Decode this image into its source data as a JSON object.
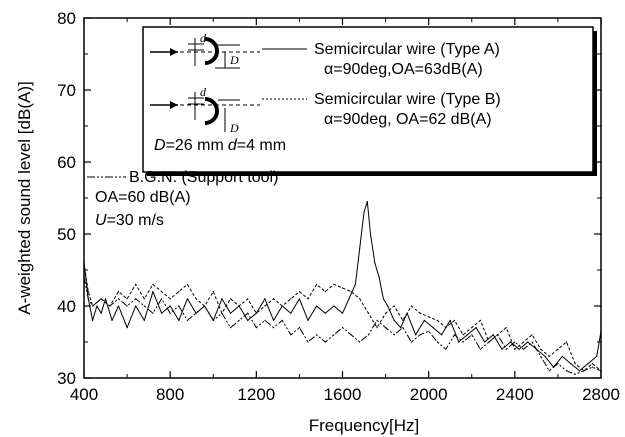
{
  "chart_data": {
    "type": "line",
    "title": "",
    "xlabel": "Frequency[Hz]",
    "ylabel": "A-weighted sound level [dB(A)]",
    "xlim": [
      400,
      2800
    ],
    "ylim": [
      30,
      80
    ],
    "xticks": [
      400,
      800,
      1200,
      1600,
      2000,
      2400,
      2800
    ],
    "yticks": [
      30,
      40,
      50,
      60,
      70,
      80
    ],
    "grid": false,
    "legend_position": "top-right",
    "legend": {
      "typeA_name": "Semicircular wire (Type A)",
      "typeA_params": "α=90deg,OA=63dB(A)",
      "typeB_name": "Semicircular wire (Type B)",
      "typeB_params": "α=90deg, OA=62 dB(A)",
      "dims_D": "D",
      "dims_D_value": "=26 mm",
      "dims_d": "d",
      "dims_d_value": "=4 mm",
      "bgn_name": "B.G.N. (Support tool)",
      "bgn_oa": "OA=60 dB(A)",
      "speed_U": "U",
      "speed_value": "=30 m/s",
      "sketch_d": "d",
      "sketch_D": "D"
    },
    "series": [
      {
        "name": "Semicircular wire (Type A)",
        "style": "solid",
        "x": [
          400,
          420,
          440,
          460,
          480,
          500,
          530,
          560,
          600,
          640,
          680,
          720,
          760,
          800,
          840,
          880,
          920,
          960,
          1000,
          1040,
          1080,
          1120,
          1160,
          1200,
          1240,
          1280,
          1320,
          1360,
          1400,
          1440,
          1480,
          1520,
          1560,
          1600,
          1630,
          1660,
          1680,
          1700,
          1715,
          1730,
          1750,
          1770,
          1790,
          1810,
          1840,
          1870,
          1900,
          1940,
          1980,
          2020,
          2060,
          2100,
          2140,
          2180,
          2220,
          2260,
          2300,
          2340,
          2380,
          2420,
          2460,
          2500,
          2540,
          2580,
          2620,
          2660,
          2700,
          2740,
          2780,
          2800
        ],
        "y": [
          46,
          41,
          38,
          40,
          39,
          41,
          38,
          40,
          37,
          40,
          38,
          42,
          39,
          40,
          38,
          41,
          39,
          40,
          38,
          41,
          39,
          40,
          38,
          39,
          41,
          38,
          40,
          39,
          41,
          38,
          40,
          39,
          40,
          39,
          41,
          43,
          48,
          53,
          54.5,
          50,
          46,
          44,
          41,
          40,
          38,
          37,
          39,
          36,
          38,
          37,
          36,
          38,
          35,
          36,
          37,
          35,
          36,
          34,
          35,
          34,
          35,
          34,
          33,
          31.5,
          33,
          32,
          31,
          32,
          33,
          36.5
        ]
      },
      {
        "name": "Semicircular wire (Type B)",
        "style": "dashed",
        "x": [
          400,
          420,
          440,
          480,
          520,
          560,
          600,
          640,
          680,
          720,
          760,
          800,
          840,
          880,
          920,
          960,
          1000,
          1040,
          1080,
          1120,
          1160,
          1200,
          1240,
          1280,
          1320,
          1360,
          1400,
          1440,
          1480,
          1520,
          1560,
          1600,
          1640,
          1680,
          1720,
          1760,
          1800,
          1840,
          1880,
          1920,
          1960,
          2000,
          2040,
          2080,
          2120,
          2160,
          2200,
          2240,
          2280,
          2320,
          2360,
          2400,
          2440,
          2480,
          2520,
          2560,
          2600,
          2640,
          2680,
          2720,
          2760,
          2800
        ],
        "y": [
          46,
          42,
          40,
          41,
          40,
          42,
          41,
          43,
          41,
          43,
          42,
          41,
          42,
          43,
          41,
          40,
          42,
          39,
          41,
          40,
          41,
          39,
          40,
          41,
          40,
          41,
          42,
          41,
          43,
          42,
          43,
          42.5,
          42,
          41,
          39,
          37,
          39,
          40,
          38,
          40,
          39,
          38.5,
          38,
          37,
          38,
          36,
          37,
          38,
          35,
          36,
          37,
          34,
          35,
          36,
          34,
          33,
          34,
          35,
          32,
          31,
          32,
          31
        ]
      },
      {
        "name": "B.G.N. (Support tool)",
        "style": "dashdot",
        "x": [
          400,
          420,
          440,
          480,
          520,
          560,
          600,
          640,
          680,
          720,
          760,
          800,
          840,
          880,
          920,
          960,
          1000,
          1040,
          1080,
          1120,
          1160,
          1200,
          1240,
          1280,
          1320,
          1360,
          1400,
          1440,
          1480,
          1520,
          1560,
          1600,
          1640,
          1680,
          1720,
          1760,
          1800,
          1840,
          1880,
          1920,
          1960,
          2000,
          2040,
          2080,
          2120,
          2160,
          2200,
          2240,
          2280,
          2320,
          2360,
          2400,
          2440,
          2480,
          2520,
          2560,
          2600,
          2640,
          2680,
          2720,
          2760,
          2800
        ],
        "y": [
          44,
          41,
          40,
          41,
          40,
          41,
          40,
          41,
          40,
          39,
          41,
          39,
          40,
          38,
          39,
          40,
          38,
          39,
          37,
          38,
          39,
          37,
          38,
          37,
          38,
          36,
          37,
          35,
          36,
          35,
          36,
          37,
          36,
          35,
          36,
          38,
          37,
          36,
          37,
          35,
          36,
          36.5,
          35,
          34,
          36,
          35,
          36,
          34,
          35,
          36,
          34,
          35,
          34,
          35,
          33,
          31,
          32,
          31,
          30.5,
          31,
          31.5,
          31
        ]
      }
    ]
  }
}
